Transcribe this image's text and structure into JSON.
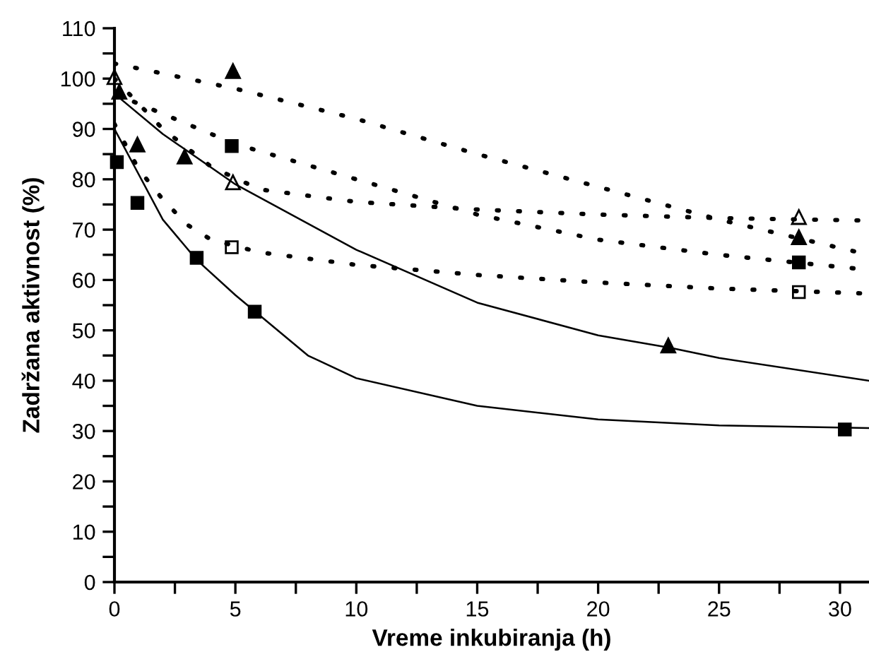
{
  "chart_data": {
    "type": "scatter",
    "xlabel": "Vreme inkubiranja (h)",
    "ylabel": "Zadržana aktivnost (%)",
    "xlim": [
      0,
      31.2
    ],
    "ylim": [
      0,
      110
    ],
    "xticks": [
      0,
      {
        "value": 2.5,
        "label": null
      },
      5,
      {
        "value": 7.5,
        "label": null
      },
      10,
      {
        "value": 12.5,
        "label": null
      },
      15,
      {
        "value": 17.5,
        "label": null
      },
      20,
      {
        "value": 22.5,
        "label": null
      },
      25,
      {
        "value": 27.5,
        "label": null
      },
      30
    ],
    "yticks": [
      0,
      {
        "value": 5,
        "label": null
      },
      10,
      {
        "value": 15,
        "label": null
      },
      20,
      {
        "value": 25,
        "label": null
      },
      30,
      {
        "value": 35,
        "label": null
      },
      40,
      {
        "value": 45,
        "label": null
      },
      50,
      {
        "value": 55,
        "label": null
      },
      60,
      {
        "value": 65,
        "label": null
      },
      70,
      {
        "value": 75,
        "label": null
      },
      80,
      {
        "value": 85,
        "label": null
      },
      90,
      {
        "value": 95,
        "label": null
      },
      100,
      {
        "value": 105,
        "label": null
      },
      110
    ],
    "grid": false,
    "legend": false,
    "series": [
      {
        "marker": "square",
        "color": "#000000",
        "x": [
          0.1,
          0.95,
          3.4,
          5.8,
          30.2
        ],
        "values": [
          83.4,
          75.3,
          64.4,
          53.7,
          30.3
        ]
      },
      {
        "marker": "triangle",
        "color": "#000000",
        "x": [
          0.2,
          0.95,
          2.9,
          22.9
        ],
        "values": [
          97.4,
          86.9,
          84.5,
          47.0
        ]
      },
      {
        "marker": "triangle",
        "color": "#000000",
        "x": [
          4.9,
          28.3
        ],
        "values": [
          101.5,
          68.5
        ]
      },
      {
        "marker": "triangle",
        "color": "#ffffff",
        "x": [
          0,
          4.9,
          28.3
        ],
        "values": [
          100.3,
          79.4,
          72.5
        ]
      },
      {
        "marker": "square",
        "color": "#000000",
        "x": [
          4.85,
          28.3
        ],
        "values": [
          86.6,
          63.5
        ]
      },
      {
        "marker": "square",
        "color": "#ffffff",
        "x": [
          4.85,
          28.3
        ],
        "values": [
          66.5,
          57.6
        ]
      },
      {
        "type": "line",
        "line_style": "solid",
        "color": "#000000",
        "x": [
          0,
          2,
          3.4,
          5,
          6,
          8,
          10,
          15,
          20,
          25,
          31.2
        ],
        "values": [
          90,
          72,
          64,
          57,
          53,
          45,
          40.5,
          35,
          32.3,
          31.1,
          30.6
        ]
      },
      {
        "type": "line",
        "line_style": "solid",
        "color": "#000000",
        "x": [
          0,
          2,
          5,
          10,
          15,
          20,
          23,
          25,
          31.2
        ],
        "values": [
          97,
          89,
          79,
          66,
          55.5,
          49,
          46.5,
          44.5,
          40
        ]
      },
      {
        "type": "line",
        "line_style": "dotted",
        "color": "#000000",
        "x": [
          0,
          5,
          10,
          15,
          20,
          25,
          31.2
        ],
        "values": [
          103,
          98,
          92,
          85,
          78.5,
          72,
          65
        ]
      },
      {
        "type": "line",
        "line_style": "dotted",
        "color": "#000000",
        "x": [
          0,
          2,
          4,
          6,
          10,
          15,
          20,
          25,
          31.2
        ],
        "values": [
          100,
          90,
          82.5,
          78,
          75.5,
          74,
          73,
          72.3,
          71.8
        ]
      },
      {
        "type": "line",
        "line_style": "dotted",
        "color": "#000000",
        "x": [
          0,
          2,
          5,
          10,
          15,
          20,
          25,
          31.2
        ],
        "values": [
          97,
          93,
          87,
          80,
          73,
          68,
          65,
          62
        ]
      },
      {
        "type": "line",
        "line_style": "dotted",
        "color": "#000000",
        "x": [
          0,
          1,
          2,
          3,
          4,
          6,
          10,
          15,
          20,
          25,
          31.2
        ],
        "values": [
          91,
          82,
          76,
          71,
          68,
          65.5,
          63,
          61,
          59.5,
          58.3,
          57.3
        ]
      }
    ]
  }
}
